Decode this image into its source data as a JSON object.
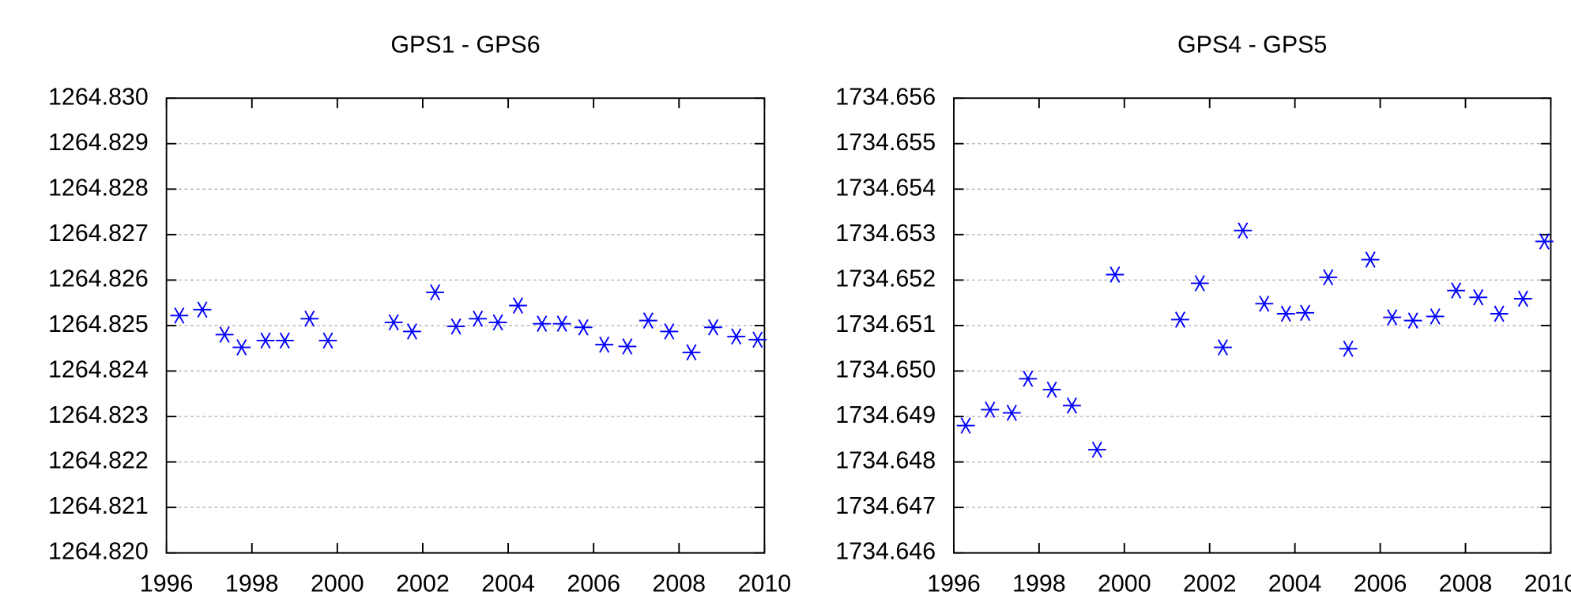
{
  "chart_data": [
    {
      "type": "scatter",
      "title": "GPS1 - GPS6",
      "color": "#0000ff",
      "grid": true,
      "x": [
        1996.3,
        1996.84,
        1997.36,
        1997.76,
        1998.32,
        1998.77,
        1999.35,
        1999.78,
        2001.32,
        2001.75,
        2002.29,
        2002.78,
        2003.29,
        2003.76,
        2004.23,
        2004.79,
        2005.26,
        2005.76,
        2006.25,
        2006.79,
        2007.28,
        2007.77,
        2008.29,
        2008.8,
        2009.34,
        2009.84
      ],
      "values": [
        1264.82522,
        1264.82535,
        1264.8248,
        1264.82452,
        1264.82467,
        1264.82467,
        1264.82515,
        1264.82467,
        1264.82507,
        1264.82487,
        1264.82573,
        1264.82498,
        1264.82515,
        1264.82507,
        1264.82544,
        1264.82504,
        1264.82504,
        1264.82496,
        1264.82458,
        1264.82454,
        1264.82511,
        1264.82487,
        1264.82441,
        1264.82496,
        1264.82476,
        1264.82469
      ],
      "xlim": [
        1996,
        2010
      ],
      "xticks": [
        1996,
        1998,
        2000,
        2002,
        2004,
        2006,
        2008,
        2010
      ],
      "ylim": [
        1264.82,
        1264.83
      ],
      "yticks": [
        {
          "value": 1264.82,
          "label": "1264.820"
        },
        1264.821,
        1264.822,
        1264.823,
        1264.824,
        1264.825,
        1264.826,
        1264.827,
        1264.828,
        1264.829,
        {
          "value": 1264.83,
          "label": "1264.830"
        }
      ]
    },
    {
      "type": "scatter",
      "title": "GPS4 - GPS5",
      "color": "#0000ff",
      "grid": true,
      "x": [
        1996.28,
        1996.85,
        1997.36,
        1997.74,
        1998.3,
        1998.77,
        1999.36,
        1999.78,
        2001.31,
        2001.77,
        2002.31,
        2002.78,
        2003.28,
        2003.79,
        2004.24,
        2004.78,
        2005.25,
        2005.77,
        2006.28,
        2006.77,
        2007.29,
        2007.78,
        2008.3,
        2008.79,
        2009.35,
        2009.85
      ],
      "values": [
        1734.6488,
        1734.64915,
        1734.64908,
        1734.64983,
        1734.64959,
        1734.64924,
        1734.64827,
        1734.65212,
        1734.65113,
        1734.65193,
        1734.65052,
        1734.65309,
        1734.65148,
        1734.65126,
        1734.65128,
        1734.65206,
        1734.65049,
        1734.65245,
        1734.65118,
        1734.65111,
        1734.6512,
        1734.65177,
        1734.65162,
        1734.65126,
        1734.65159,
        1734.65285
      ],
      "xlim": [
        1996,
        2010
      ],
      "xticks": [
        1996,
        1998,
        2000,
        2002,
        2004,
        2006,
        2008,
        2010
      ],
      "ylim": [
        1734.646,
        1734.656
      ],
      "yticks": [
        1734.646,
        1734.647,
        1734.648,
        1734.649,
        {
          "value": 1734.65,
          "label": "1734.650"
        },
        1734.651,
        1734.652,
        1734.653,
        1734.654,
        1734.655,
        1734.656
      ]
    }
  ]
}
